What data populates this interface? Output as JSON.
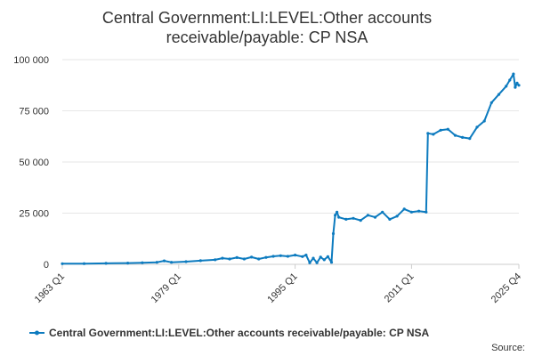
{
  "chart_data": {
    "type": "line",
    "title_lines": [
      "Central Government:LI:LEVEL:Other accounts",
      "receivable/payable: CP NSA"
    ],
    "xlabel": "",
    "ylabel": "",
    "x_range": [
      "1963 Q1",
      "2025 Q4"
    ],
    "x_ticks": [
      "1963 Q1",
      "1979 Q1",
      "1995 Q1",
      "2011 Q1",
      "2025 Q4"
    ],
    "ylim": [
      0,
      100000
    ],
    "y_ticks": [
      {
        "value": 0,
        "label": "0"
      },
      {
        "value": 25000,
        "label": "25 000"
      },
      {
        "value": 50000,
        "label": "50 000"
      },
      {
        "value": 75000,
        "label": "75 000"
      },
      {
        "value": 100000,
        "label": "100 000"
      }
    ],
    "grid": "horizontal",
    "legend_position": "bottom",
    "series": [
      {
        "name": "Central Government:LI:LEVEL:Other accounts receivable/payable: CP NSA",
        "color": "#0d7bbf",
        "points": [
          [
            "1963 Q1",
            300
          ],
          [
            "1966 Q1",
            350
          ],
          [
            "1969 Q1",
            500
          ],
          [
            "1972 Q1",
            600
          ],
          [
            "1974 Q1",
            800
          ],
          [
            "1976 Q1",
            1000
          ],
          [
            "1977 Q1",
            1700
          ],
          [
            "1978 Q1",
            1000
          ],
          [
            "1980 Q1",
            1300
          ],
          [
            "1982 Q1",
            1800
          ],
          [
            "1984 Q1",
            2200
          ],
          [
            "1985 Q1",
            3000
          ],
          [
            "1986 Q1",
            2600
          ],
          [
            "1987 Q1",
            3300
          ],
          [
            "1988 Q1",
            2600
          ],
          [
            "1989 Q1",
            3500
          ],
          [
            "1990 Q1",
            2600
          ],
          [
            "1991 Q1",
            3400
          ],
          [
            "1992 Q1",
            3900
          ],
          [
            "1993 Q1",
            4200
          ],
          [
            "1994 Q1",
            3900
          ],
          [
            "1995 Q1",
            4500
          ],
          [
            "1996 Q1",
            3800
          ],
          [
            "1996 Q3",
            4500
          ],
          [
            "1997 Q1",
            800
          ],
          [
            "1997 Q3",
            3000
          ],
          [
            "1998 Q1",
            800
          ],
          [
            "1998 Q3",
            3500
          ],
          [
            "1999 Q1",
            2200
          ],
          [
            "1999 Q3",
            3800
          ],
          [
            "2000 Q1",
            1000
          ],
          [
            "2000 Q2",
            15000
          ],
          [
            "2000 Q3",
            24000
          ],
          [
            "2000 Q4",
            25500
          ],
          [
            "2001 Q1",
            23000
          ],
          [
            "2002 Q1",
            22000
          ],
          [
            "2003 Q1",
            22500
          ],
          [
            "2004 Q1",
            21500
          ],
          [
            "2005 Q1",
            24000
          ],
          [
            "2006 Q1",
            23000
          ],
          [
            "2007 Q1",
            25500
          ],
          [
            "2008 Q1",
            22000
          ],
          [
            "2009 Q1",
            23500
          ],
          [
            "2010 Q1",
            27000
          ],
          [
            "2011 Q1",
            25500
          ],
          [
            "2012 Q1",
            26000
          ],
          [
            "2013 Q1",
            25500
          ],
          [
            "2013 Q2",
            64000
          ],
          [
            "2014 Q1",
            63500
          ],
          [
            "2015 Q1",
            65500
          ],
          [
            "2016 Q1",
            66000
          ],
          [
            "2017 Q1",
            63000
          ],
          [
            "2018 Q1",
            62000
          ],
          [
            "2019 Q1",
            61500
          ],
          [
            "2020 Q1",
            67000
          ],
          [
            "2021 Q1",
            70000
          ],
          [
            "2022 Q1",
            79000
          ],
          [
            "2023 Q1",
            83000
          ],
          [
            "2024 Q1",
            87000
          ],
          [
            "2024 Q3",
            90000
          ],
          [
            "2025 Q1",
            93000
          ],
          [
            "2025 Q2",
            86500
          ],
          [
            "2025 Q3",
            88500
          ],
          [
            "2025 Q4",
            87500
          ]
        ]
      }
    ],
    "source_label": "Source:"
  }
}
